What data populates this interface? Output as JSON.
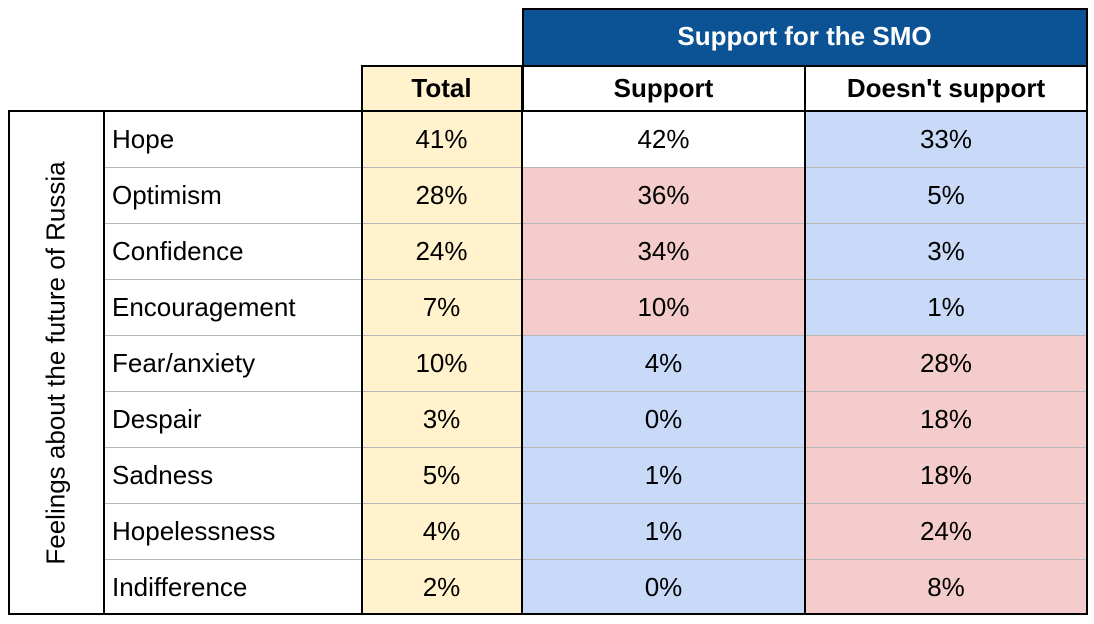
{
  "chart_data": {
    "type": "table",
    "banner": "Support for the SMO",
    "row_group_label": "Feelings about the future of Russia",
    "columns": [
      "Total",
      "Support",
      "Doesn't support"
    ],
    "rows": [
      {
        "label": "Hope",
        "values": [
          "41%",
          "42%",
          "33%"
        ]
      },
      {
        "label": "Optimism",
        "values": [
          "28%",
          "36%",
          "5%"
        ]
      },
      {
        "label": "Confidence",
        "values": [
          "24%",
          "34%",
          "3%"
        ]
      },
      {
        "label": "Encouragement",
        "values": [
          "7%",
          "10%",
          "1%"
        ]
      },
      {
        "label": "Fear/anxiety",
        "values": [
          "10%",
          "4%",
          "28%"
        ]
      },
      {
        "label": "Despair",
        "values": [
          "3%",
          "0%",
          "18%"
        ]
      },
      {
        "label": "Sadness",
        "values": [
          "5%",
          "1%",
          "18%"
        ]
      },
      {
        "label": "Hopelessness",
        "values": [
          "4%",
          "1%",
          "24%"
        ]
      },
      {
        "label": "Indifference",
        "values": [
          "2%",
          "0%",
          "8%"
        ]
      }
    ]
  },
  "colors": {
    "banner_bg": "#0b5394",
    "banner_text": "#ffffff",
    "total_col": "#fff2cc",
    "high": "#f4cccc",
    "low": "#c9daf8",
    "neutral": "#ffffff"
  },
  "cell_shading": [
    [
      "neutral",
      "low"
    ],
    [
      "high",
      "low"
    ],
    [
      "high",
      "low"
    ],
    [
      "high",
      "low"
    ],
    [
      "low",
      "high"
    ],
    [
      "low",
      "high"
    ],
    [
      "low",
      "high"
    ],
    [
      "low",
      "high"
    ],
    [
      "low",
      "high"
    ]
  ]
}
